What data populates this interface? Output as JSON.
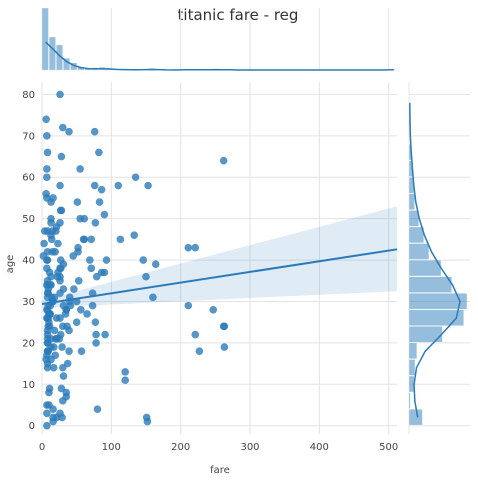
{
  "chart_data": {
    "type": "scatter",
    "title": "titanic fare - reg",
    "xlabel": "fare",
    "ylabel": "age",
    "xlim": [
      0,
      512
    ],
    "ylim": [
      -2,
      83
    ],
    "xticks": [
      0,
      100,
      200,
      300,
      400,
      500
    ],
    "yticks": [
      0,
      10,
      20,
      30,
      40,
      50,
      60,
      70,
      80
    ],
    "grid": true,
    "color": "#2b7bba",
    "regression": {
      "x": [
        0,
        512
      ],
      "y": [
        29.4,
        42.6
      ],
      "ci_lower": [
        28.5,
        32.5
      ],
      "ci_upper": [
        30.3,
        53.0
      ]
    },
    "points": [
      [
        8,
        22
      ],
      [
        71,
        38
      ],
      [
        8,
        26
      ],
      [
        53,
        35
      ],
      [
        8,
        35
      ],
      [
        51,
        54
      ],
      [
        21,
        2
      ],
      [
        11,
        27
      ],
      [
        30,
        14
      ],
      [
        16,
        4
      ],
      [
        26,
        58
      ],
      [
        8,
        20
      ],
      [
        31,
        39
      ],
      [
        8,
        14
      ],
      [
        16,
        55
      ],
      [
        29,
        2
      ],
      [
        18,
        31
      ],
      [
        26,
        35
      ],
      [
        13,
        34
      ],
      [
        8,
        15
      ],
      [
        35,
        28
      ],
      [
        263,
        19
      ],
      [
        146,
        40
      ],
      [
        82,
        66
      ],
      [
        52,
        42
      ],
      [
        21,
        21
      ],
      [
        8,
        18
      ],
      [
        27,
        40
      ],
      [
        10,
        27
      ],
      [
        7,
        3
      ],
      [
        29,
        19
      ],
      [
        8,
        18
      ],
      [
        35,
        7
      ],
      [
        8,
        21
      ],
      [
        77,
        49
      ],
      [
        9,
        29
      ],
      [
        28,
        65
      ],
      [
        247,
        28
      ],
      [
        10,
        5
      ],
      [
        27,
        38
      ],
      [
        12,
        29
      ],
      [
        61,
        45
      ],
      [
        7,
        17
      ],
      [
        26,
        32
      ],
      [
        61,
        50
      ],
      [
        86,
        37
      ],
      [
        4,
        47
      ],
      [
        30,
        24
      ],
      [
        76,
        71
      ],
      [
        7,
        34
      ],
      [
        263,
        24
      ],
      [
        60,
        45
      ],
      [
        120,
        11
      ],
      [
        39,
        23
      ],
      [
        151,
        2
      ],
      [
        13,
        21
      ],
      [
        79,
        36
      ],
      [
        15,
        30
      ],
      [
        73,
        32
      ],
      [
        50,
        25
      ],
      [
        69,
        40
      ],
      [
        80,
        4
      ],
      [
        7,
        40
      ],
      [
        11,
        9
      ],
      [
        8,
        34
      ],
      [
        6,
        56
      ],
      [
        262,
        24
      ],
      [
        3,
        44
      ],
      [
        7,
        0
      ],
      [
        26,
        49
      ],
      [
        90,
        51
      ],
      [
        17,
        19
      ],
      [
        13,
        50
      ],
      [
        113,
        45
      ],
      [
        227,
        18
      ],
      [
        211,
        43
      ],
      [
        133,
        46
      ],
      [
        31,
        33
      ],
      [
        15,
        47
      ],
      [
        19,
        42
      ],
      [
        21,
        26
      ],
      [
        26,
        38
      ],
      [
        27,
        22
      ],
      [
        23,
        44
      ],
      [
        14,
        31
      ],
      [
        8,
        28
      ],
      [
        57,
        18
      ],
      [
        39,
        18
      ],
      [
        7,
        60
      ],
      [
        153,
        58
      ],
      [
        110,
        58
      ],
      [
        135,
        60
      ],
      [
        90,
        37
      ],
      [
        76,
        58
      ],
      [
        77,
        25
      ],
      [
        28,
        52
      ],
      [
        12,
        34
      ],
      [
        50,
        30
      ],
      [
        2,
        41
      ],
      [
        9,
        26
      ],
      [
        164,
        39
      ],
      [
        262,
        64
      ],
      [
        211,
        29
      ],
      [
        91,
        22
      ],
      [
        83,
        54
      ],
      [
        26,
        36
      ],
      [
        40,
        30
      ],
      [
        9,
        18
      ],
      [
        55,
        50
      ],
      [
        35,
        8
      ],
      [
        7,
        62
      ],
      [
        13,
        46
      ],
      [
        120,
        13
      ],
      [
        65,
        27
      ],
      [
        18,
        23
      ],
      [
        86,
        57
      ],
      [
        20,
        47
      ],
      [
        7,
        70
      ],
      [
        8,
        66
      ],
      [
        52,
        43
      ],
      [
        93,
        40
      ],
      [
        16,
        1
      ],
      [
        26,
        26
      ],
      [
        152,
        1
      ],
      [
        160,
        31
      ],
      [
        6,
        16
      ],
      [
        8,
        20
      ],
      [
        14,
        45
      ],
      [
        8,
        32
      ],
      [
        13,
        36
      ],
      [
        31,
        29
      ],
      [
        21,
        48
      ],
      [
        40,
        31
      ],
      [
        73,
        29
      ],
      [
        26,
        80
      ],
      [
        30,
        72
      ],
      [
        221,
        43
      ],
      [
        221,
        22
      ],
      [
        25,
        21
      ],
      [
        19,
        17
      ],
      [
        10,
        25
      ],
      [
        7,
        38
      ],
      [
        8,
        23
      ],
      [
        13,
        19
      ],
      [
        7,
        55
      ],
      [
        9,
        33
      ],
      [
        78,
        22
      ],
      [
        36,
        24
      ],
      [
        34,
        27
      ],
      [
        56,
        28
      ],
      [
        39,
        71
      ],
      [
        6,
        74
      ],
      [
        11,
        24
      ],
      [
        13,
        54
      ],
      [
        150,
        36
      ],
      [
        23,
        37
      ],
      [
        13,
        16
      ],
      [
        15,
        42
      ],
      [
        26,
        3
      ],
      [
        7,
        5
      ],
      [
        10,
        8
      ],
      [
        31,
        12
      ],
      [
        20,
        21
      ],
      [
        35,
        28
      ],
      [
        8,
        47
      ],
      [
        11,
        37
      ],
      [
        46,
        33
      ],
      [
        16,
        2
      ],
      [
        55,
        62
      ],
      [
        8,
        40
      ],
      [
        22,
        36
      ],
      [
        71,
        45
      ],
      [
        8,
        31
      ],
      [
        27,
        52
      ],
      [
        9,
        24
      ],
      [
        41,
        29
      ],
      [
        13,
        49
      ],
      [
        30,
        6
      ],
      [
        7,
        28
      ],
      [
        78,
        20
      ],
      [
        17,
        14
      ],
      [
        37,
        15
      ],
      [
        8,
        42
      ],
      [
        9,
        32
      ],
      [
        12,
        27
      ],
      [
        16,
        30
      ],
      [
        28,
        9
      ],
      [
        7,
        26
      ],
      [
        45,
        41
      ]
    ],
    "marginal_x": {
      "bin_width": 10.25,
      "counts": [
        336,
        179,
        136,
        64,
        39,
        17,
        8,
        13,
        15,
        11,
        4,
        3,
        4,
        2,
        2,
        9,
        3,
        0,
        0,
        0,
        2,
        4,
        1,
        2,
        4,
        5,
        0,
        0,
        0,
        0,
        0,
        0,
        0,
        0,
        0,
        0,
        0,
        0,
        0,
        0,
        0,
        0,
        0,
        0,
        0,
        0,
        0,
        0,
        0,
        3
      ]
    },
    "marginal_y": {
      "bins": [
        0,
        4,
        8,
        12,
        16,
        20,
        24,
        28,
        32,
        36,
        40,
        44,
        48,
        52,
        56,
        60,
        64,
        68,
        72,
        76,
        80
      ],
      "counts": [
        29,
        3,
        11,
        13,
        17,
        72,
        118,
        125,
        92,
        69,
        43,
        32,
        21,
        12,
        10,
        8,
        5,
        1,
        3,
        1
      ]
    }
  }
}
